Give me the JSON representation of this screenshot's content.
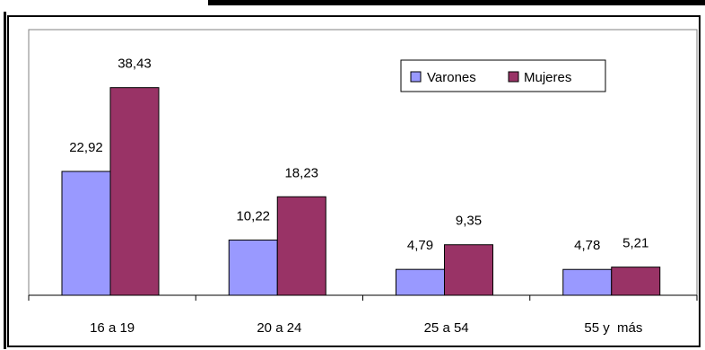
{
  "chart_data": {
    "type": "bar",
    "title": "",
    "xlabel": "",
    "ylabel": "",
    "categories": [
      "16 a 19",
      "20 a 24",
      "25 a 54",
      "55 y  más"
    ],
    "series": [
      {
        "name": "Varones",
        "values": [
          22.92,
          10.22,
          4.79,
          4.78
        ],
        "labels": [
          "22,92",
          "10,22",
          "4,79",
          "4,78"
        ],
        "color": "#9999ff"
      },
      {
        "name": "Mujeres",
        "values": [
          38.43,
          18.23,
          9.35,
          5.21
        ],
        "labels": [
          "38,43",
          "18,23",
          "9,35",
          "5,21"
        ],
        "color": "#993366"
      }
    ],
    "ylim": [
      0,
      50
    ],
    "grid": false,
    "legend_position": "top-right"
  }
}
